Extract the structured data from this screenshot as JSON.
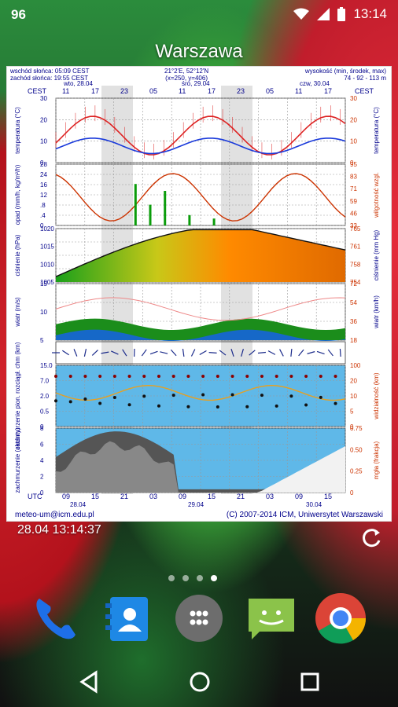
{
  "status_bar": {
    "notification_count": "96",
    "time": "13:14",
    "icons": [
      "wifi-icon",
      "signal-icon",
      "battery-icon"
    ]
  },
  "widget": {
    "title": "Warszawa",
    "header": {
      "sunrise": "wschód słońca: 05:09 CEST",
      "sunset": "zachód słońca: 19:55 CEST",
      "coords": "21°2'E, 52°12'N",
      "grid": "(x=250, y=406)",
      "elev_label": "wysokość (min, środek, max)",
      "elev_values": "74 - 92 - 113 m"
    },
    "days_top": [
      {
        "label": "wto, 28.04"
      },
      {
        "label": "śro, 29.04"
      },
      {
        "label": "czw, 30.04"
      }
    ],
    "hours_cest": [
      "11",
      "17",
      "23",
      "05",
      "11",
      "17",
      "23",
      "05",
      "11",
      "17"
    ],
    "hours_utc": [
      "09",
      "15",
      "21",
      "03",
      "09",
      "15",
      "21",
      "03",
      "09",
      "15"
    ],
    "dates_bottom": [
      "28.04",
      "29.04",
      "30.04"
    ],
    "cest_label": "CEST",
    "utc_label": "UTC",
    "panels": {
      "temp": {
        "ylabel": "temperatura (°C)",
        "ticks": [
          "30",
          "20",
          "10",
          "0"
        ]
      },
      "precip": {
        "ylabel": "opad (mm/h, kg/m²/h)",
        "ticks": [
          "28",
          "24",
          "16",
          "12",
          ".8",
          ".4",
          "0"
        ],
        "right_label": "wilgotność wzgl.",
        "right_ticks": [
          "95",
          "83",
          "71",
          "59",
          "46",
          "33"
        ]
      },
      "pressure": {
        "ylabel": "ciśnienie (hPa)",
        "ticks": [
          "1020",
          "1015",
          "1010",
          "1005"
        ],
        "right_label": "ciśnienie (mm Hg)",
        "right_ticks": [
          "765",
          "761",
          "758",
          "754"
        ]
      },
      "wind": {
        "ylabel": "wiatr (m/s)",
        "ticks": [
          "15",
          "10",
          "5"
        ],
        "right_label": "wiatr (km/h)",
        "right_ticks": [
          "72",
          "54",
          "36",
          "18"
        ]
      },
      "visibility": {
        "ylabel": "zachmurzenie pion. rozciągł. chm (km)",
        "ticks": [
          "15.0",
          "7.0",
          "2.0",
          "0.5",
          "0"
        ],
        "right_label": "widzialność (km)",
        "right_ticks": [
          "100",
          "20",
          "10",
          "5",
          "0"
        ]
      },
      "cloud": {
        "ylabel": "zachmurzenie (oktanty)",
        "ticks": [
          "8",
          "6",
          "4",
          "2",
          "0"
        ],
        "right_label": "mgła (frakcja)",
        "right_ticks": [
          "0.75",
          "0.50",
          "0.25",
          "0"
        ]
      }
    },
    "footer_left": "meteo-um@icm.edu.pl",
    "footer_right": "(C) 2007-2014 ICM, Uniwersytet Warszawski"
  },
  "timestamp": "28.04 13:14:37",
  "page_indicator": {
    "count": 4,
    "active": 3
  },
  "dock": [
    "phone-icon",
    "contacts-icon",
    "app-drawer-icon",
    "messaging-icon",
    "chrome-icon"
  ],
  "nav": [
    "back-button",
    "home-button",
    "recents-button"
  ],
  "colors": {
    "temp_line": "#d22",
    "temp_dew": "#1a3adb",
    "pressure_hi": "#e07b00",
    "wind_fill": "#1b8d1b",
    "sky": "#5fb8e8"
  }
}
